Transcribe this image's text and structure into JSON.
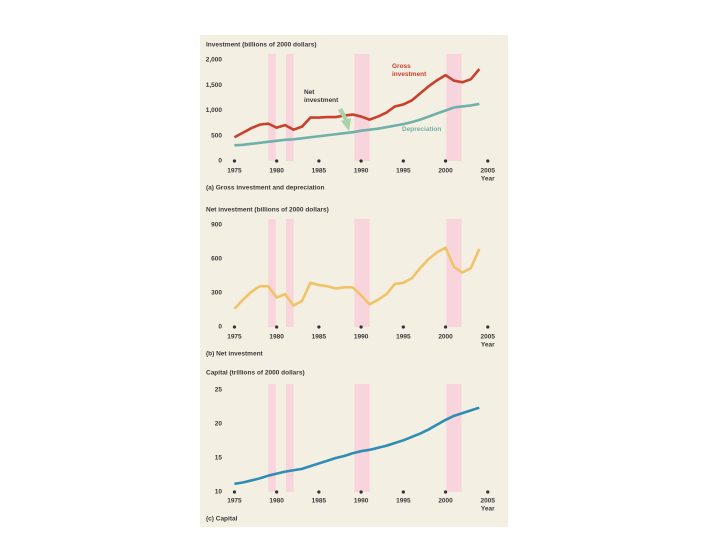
{
  "chart_data": [
    {
      "type": "line",
      "title": "Investment (billions of 2000 dollars)",
      "caption": "(a) Gross investment and depreciation",
      "xlabel": "Year",
      "x": [
        1975,
        1976,
        1977,
        1978,
        1979,
        1980,
        1981,
        1982,
        1983,
        1984,
        1985,
        1986,
        1987,
        1988,
        1989,
        1990,
        1991,
        1992,
        1993,
        1994,
        1995,
        1996,
        1997,
        1998,
        1999,
        2000,
        2001,
        2002,
        2003,
        2004
      ],
      "xlim": [
        1974,
        2005.5
      ],
      "xticks": [
        1975,
        1980,
        1985,
        1990,
        1995,
        2000,
        2005
      ],
      "ylim": [
        0,
        2000
      ],
      "yticks": [
        0,
        500,
        {
          "value": 1000,
          "label": "1,000"
        },
        {
          "value": 1500,
          "label": "1,500"
        },
        {
          "value": 2000,
          "label": "2,000"
        }
      ],
      "recessions": [
        [
          1979.0,
          1979.9
        ],
        [
          1981.1,
          1982.0
        ],
        [
          1989.2,
          1991.0
        ],
        [
          2000.1,
          2001.9
        ]
      ],
      "recession_color": "#f8d5dc",
      "series": [
        {
          "name": "Gross investment",
          "color": "#c9412d",
          "values": [
            470,
            560,
            650,
            720,
            740,
            660,
            710,
            620,
            680,
            860,
            860,
            870,
            870,
            900,
            920,
            880,
            820,
            880,
            960,
            1080,
            1120,
            1200,
            1340,
            1480,
            1600,
            1700,
            1590,
            1560,
            1620,
            1820
          ]
        },
        {
          "name": "Depreciation",
          "color": "#6fb1aa",
          "values": [
            310,
            320,
            340,
            360,
            380,
            400,
            420,
            430,
            450,
            470,
            490,
            510,
            530,
            550,
            570,
            600,
            620,
            640,
            670,
            700,
            730,
            770,
            820,
            880,
            940,
            1000,
            1060,
            1080,
            1100,
            1130
          ]
        }
      ],
      "annotations": [
        {
          "lines": [
            "Gross",
            "investment"
          ],
          "color": "#c9412d"
        },
        {
          "lines": [
            "Net",
            "investment"
          ],
          "color": "#3a3a3a"
        },
        {
          "lines": [
            "Depreciation"
          ],
          "color": "#6fb1aa"
        }
      ]
    },
    {
      "type": "line",
      "title": "Net investment (billions of 2000 dollars)",
      "caption": "(b) Net investment",
      "xlabel": "Year",
      "x": [
        1975,
        1976,
        1977,
        1978,
        1979,
        1980,
        1981,
        1982,
        1983,
        1984,
        1985,
        1986,
        1987,
        1988,
        1989,
        1990,
        1991,
        1992,
        1993,
        1994,
        1995,
        1996,
        1997,
        1998,
        1999,
        2000,
        2001,
        2002,
        2003,
        2004
      ],
      "xlim": [
        1974,
        2005.5
      ],
      "xticks": [
        1975,
        1980,
        1985,
        1990,
        1995,
        2000,
        2005
      ],
      "ylim": [
        0,
        900
      ],
      "yticks": [
        0,
        300,
        600,
        900
      ],
      "recessions": [
        [
          1979.0,
          1979.9
        ],
        [
          1981.1,
          1982.0
        ],
        [
          1989.2,
          1991.0
        ],
        [
          2000.1,
          2001.9
        ]
      ],
      "recession_color": "#f8d5dc",
      "series": [
        {
          "name": "Net investment",
          "color": "#f1c369",
          "values": [
            160,
            240,
            310,
            360,
            360,
            260,
            290,
            190,
            230,
            390,
            370,
            360,
            340,
            350,
            350,
            280,
            200,
            240,
            290,
            380,
            390,
            430,
            520,
            600,
            660,
            700,
            530,
            480,
            520,
            690
          ]
        }
      ]
    },
    {
      "type": "line",
      "title": "Capital (trillions of 2000 dollars)",
      "caption": "(c) Capital",
      "xlabel": "Year",
      "x": [
        1975,
        1976,
        1977,
        1978,
        1979,
        1980,
        1981,
        1982,
        1983,
        1984,
        1985,
        1986,
        1987,
        1988,
        1989,
        1990,
        1991,
        1992,
        1993,
        1994,
        1995,
        1996,
        1997,
        1998,
        1999,
        2000,
        2001,
        2002,
        2003,
        2004
      ],
      "xlim": [
        1974,
        2005.5
      ],
      "xticks": [
        1975,
        1980,
        1985,
        1990,
        1995,
        2000,
        2005
      ],
      "ylim": [
        10,
        25
      ],
      "yticks": [
        10,
        15,
        20,
        25
      ],
      "recessions": [
        [
          1979.0,
          1979.9
        ],
        [
          1981.1,
          1982.0
        ],
        [
          1989.2,
          1991.0
        ],
        [
          2000.1,
          2001.9
        ]
      ],
      "recession_color": "#f8d5dc",
      "series": [
        {
          "name": "Capital",
          "color": "#2f8db5",
          "values": [
            11.2,
            11.4,
            11.7,
            12.0,
            12.4,
            12.7,
            13.0,
            13.2,
            13.4,
            13.8,
            14.2,
            14.6,
            15.0,
            15.3,
            15.7,
            16.0,
            16.2,
            16.5,
            16.8,
            17.2,
            17.6,
            18.1,
            18.6,
            19.2,
            19.9,
            20.6,
            21.2,
            21.6,
            22.0,
            22.4
          ]
        }
      ]
    }
  ]
}
